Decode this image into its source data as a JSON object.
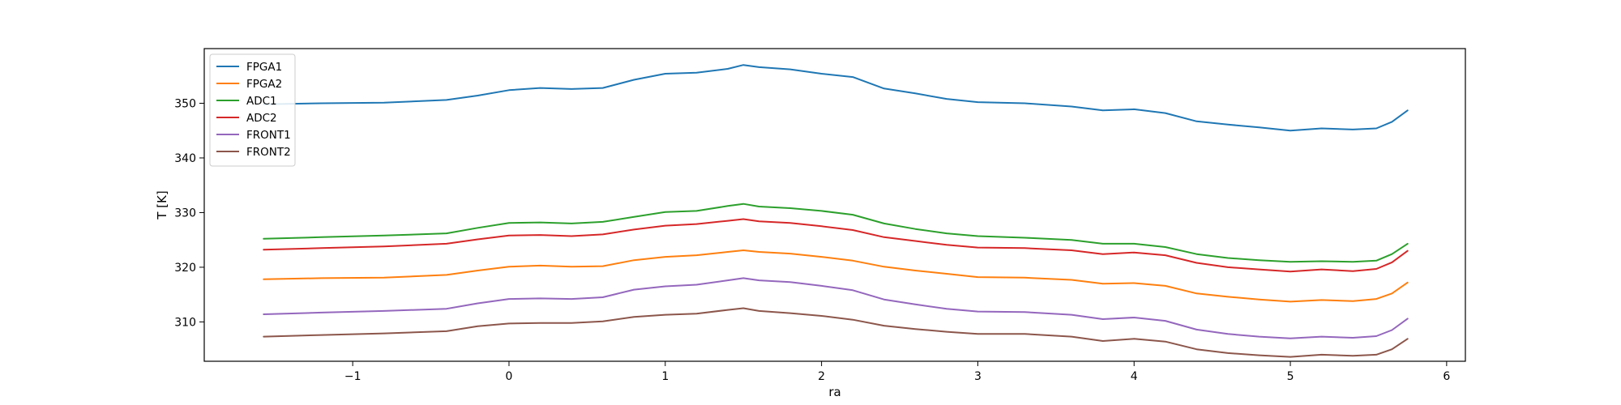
{
  "chart_data": {
    "type": "line",
    "title": "",
    "xlabel": "ra",
    "ylabel": "T [K]",
    "xlim": [
      -1.95,
      6.12
    ],
    "ylim": [
      302.8,
      360.0
    ],
    "xticks": [
      -1,
      0,
      1,
      2,
      3,
      4,
      5,
      6
    ],
    "yticks": [
      310,
      320,
      330,
      340,
      350
    ],
    "grid": false,
    "legend": "top-left",
    "series": [
      {
        "name": "FPGA1",
        "color": "#1f77b4",
        "x": [
          -1.57,
          -1.2,
          -0.8,
          -0.4,
          -0.2,
          0.0,
          0.2,
          0.4,
          0.6,
          0.8,
          1.0,
          1.2,
          1.4,
          1.5,
          1.6,
          1.8,
          2.0,
          2.2,
          2.4,
          2.6,
          2.8,
          3.0,
          3.3,
          3.6,
          3.8,
          4.0,
          4.2,
          4.4,
          4.6,
          4.8,
          5.0,
          5.2,
          5.4,
          5.55,
          5.65,
          5.75
        ],
        "y": [
          349.8,
          350.0,
          350.1,
          350.6,
          351.4,
          352.4,
          352.8,
          352.6,
          352.8,
          354.3,
          355.4,
          355.6,
          356.3,
          357.0,
          356.6,
          356.2,
          355.4,
          354.8,
          352.7,
          351.8,
          350.8,
          350.2,
          350.0,
          349.4,
          348.7,
          348.9,
          348.2,
          346.7,
          346.1,
          345.6,
          345.0,
          345.4,
          345.2,
          345.4,
          346.6,
          348.7
        ]
      },
      {
        "name": "FPGA2",
        "color": "#ff7f0e",
        "x": [
          -1.57,
          -1.2,
          -0.8,
          -0.4,
          -0.2,
          0.0,
          0.2,
          0.4,
          0.6,
          0.8,
          1.0,
          1.2,
          1.4,
          1.5,
          1.6,
          1.8,
          2.0,
          2.2,
          2.4,
          2.6,
          2.8,
          3.0,
          3.3,
          3.6,
          3.8,
          4.0,
          4.2,
          4.4,
          4.6,
          4.8,
          5.0,
          5.2,
          5.4,
          5.55,
          5.65,
          5.75
        ],
        "y": [
          317.8,
          318.0,
          318.1,
          318.6,
          319.4,
          320.1,
          320.3,
          320.1,
          320.2,
          321.3,
          321.9,
          322.2,
          322.8,
          323.1,
          322.8,
          322.5,
          321.9,
          321.2,
          320.1,
          319.4,
          318.8,
          318.2,
          318.1,
          317.7,
          317.0,
          317.1,
          316.6,
          315.2,
          314.6,
          314.1,
          313.7,
          314.0,
          313.8,
          314.2,
          315.2,
          317.2
        ]
      },
      {
        "name": "ADC1",
        "color": "#2ca02c",
        "x": [
          -1.57,
          -1.2,
          -0.8,
          -0.4,
          -0.2,
          0.0,
          0.2,
          0.4,
          0.6,
          0.8,
          1.0,
          1.2,
          1.4,
          1.5,
          1.6,
          1.8,
          2.0,
          2.2,
          2.4,
          2.6,
          2.8,
          3.0,
          3.3,
          3.6,
          3.8,
          4.0,
          4.2,
          4.4,
          4.6,
          4.8,
          5.0,
          5.2,
          5.4,
          5.55,
          5.65,
          5.75
        ],
        "y": [
          325.2,
          325.5,
          325.8,
          326.2,
          327.2,
          328.1,
          328.2,
          328.0,
          328.3,
          329.2,
          330.1,
          330.3,
          331.2,
          331.6,
          331.1,
          330.8,
          330.3,
          329.6,
          328.0,
          327.0,
          326.2,
          325.7,
          325.4,
          325.0,
          324.3,
          324.3,
          323.7,
          322.4,
          321.7,
          321.3,
          321.0,
          321.1,
          321.0,
          321.2,
          322.4,
          324.3
        ]
      },
      {
        "name": "ADC2",
        "color": "#d62728",
        "x": [
          -1.57,
          -1.2,
          -0.8,
          -0.4,
          -0.2,
          0.0,
          0.2,
          0.4,
          0.6,
          0.8,
          1.0,
          1.2,
          1.4,
          1.5,
          1.6,
          1.8,
          2.0,
          2.2,
          2.4,
          2.6,
          2.8,
          3.0,
          3.3,
          3.6,
          3.8,
          4.0,
          4.2,
          4.4,
          4.6,
          4.8,
          5.0,
          5.2,
          5.4,
          5.55,
          5.65,
          5.75
        ],
        "y": [
          323.2,
          323.5,
          323.8,
          324.3,
          325.1,
          325.8,
          325.9,
          325.7,
          326.0,
          326.9,
          327.6,
          327.9,
          328.5,
          328.8,
          328.4,
          328.1,
          327.5,
          326.8,
          325.5,
          324.8,
          324.1,
          323.6,
          323.5,
          323.1,
          322.4,
          322.7,
          322.2,
          320.8,
          320.0,
          319.6,
          319.2,
          319.6,
          319.3,
          319.7,
          320.9,
          323.0
        ]
      },
      {
        "name": "FRONT1",
        "color": "#9467bd",
        "x": [
          -1.57,
          -1.2,
          -0.8,
          -0.4,
          -0.2,
          0.0,
          0.2,
          0.4,
          0.6,
          0.8,
          1.0,
          1.2,
          1.4,
          1.5,
          1.6,
          1.8,
          2.0,
          2.2,
          2.4,
          2.6,
          2.8,
          3.0,
          3.3,
          3.6,
          3.8,
          4.0,
          4.2,
          4.4,
          4.6,
          4.8,
          5.0,
          5.2,
          5.4,
          5.55,
          5.65,
          5.75
        ],
        "y": [
          311.4,
          311.7,
          312.0,
          312.4,
          313.4,
          314.2,
          314.3,
          314.2,
          314.5,
          315.9,
          316.5,
          316.8,
          317.6,
          318.0,
          317.6,
          317.3,
          316.6,
          315.8,
          314.1,
          313.2,
          312.4,
          311.9,
          311.8,
          311.3,
          310.5,
          310.8,
          310.2,
          308.6,
          307.8,
          307.3,
          307.0,
          307.3,
          307.1,
          307.4,
          308.5,
          310.6
        ]
      },
      {
        "name": "FRONT2",
        "color": "#8c564b",
        "x": [
          -1.57,
          -1.2,
          -0.8,
          -0.4,
          -0.2,
          0.0,
          0.2,
          0.4,
          0.6,
          0.8,
          1.0,
          1.2,
          1.4,
          1.5,
          1.6,
          1.8,
          2.0,
          2.2,
          2.4,
          2.6,
          2.8,
          3.0,
          3.3,
          3.6,
          3.8,
          4.0,
          4.2,
          4.4,
          4.6,
          4.8,
          5.0,
          5.2,
          5.4,
          5.55,
          5.65,
          5.75
        ],
        "y": [
          307.3,
          307.6,
          307.9,
          308.3,
          309.2,
          309.7,
          309.8,
          309.8,
          310.1,
          310.9,
          311.3,
          311.5,
          312.2,
          312.5,
          312.0,
          311.6,
          311.1,
          310.4,
          309.3,
          308.7,
          308.2,
          307.8,
          307.8,
          307.3,
          306.5,
          306.9,
          306.4,
          305.0,
          304.3,
          303.9,
          303.6,
          304.0,
          303.8,
          304.0,
          305.0,
          306.9
        ]
      }
    ]
  }
}
